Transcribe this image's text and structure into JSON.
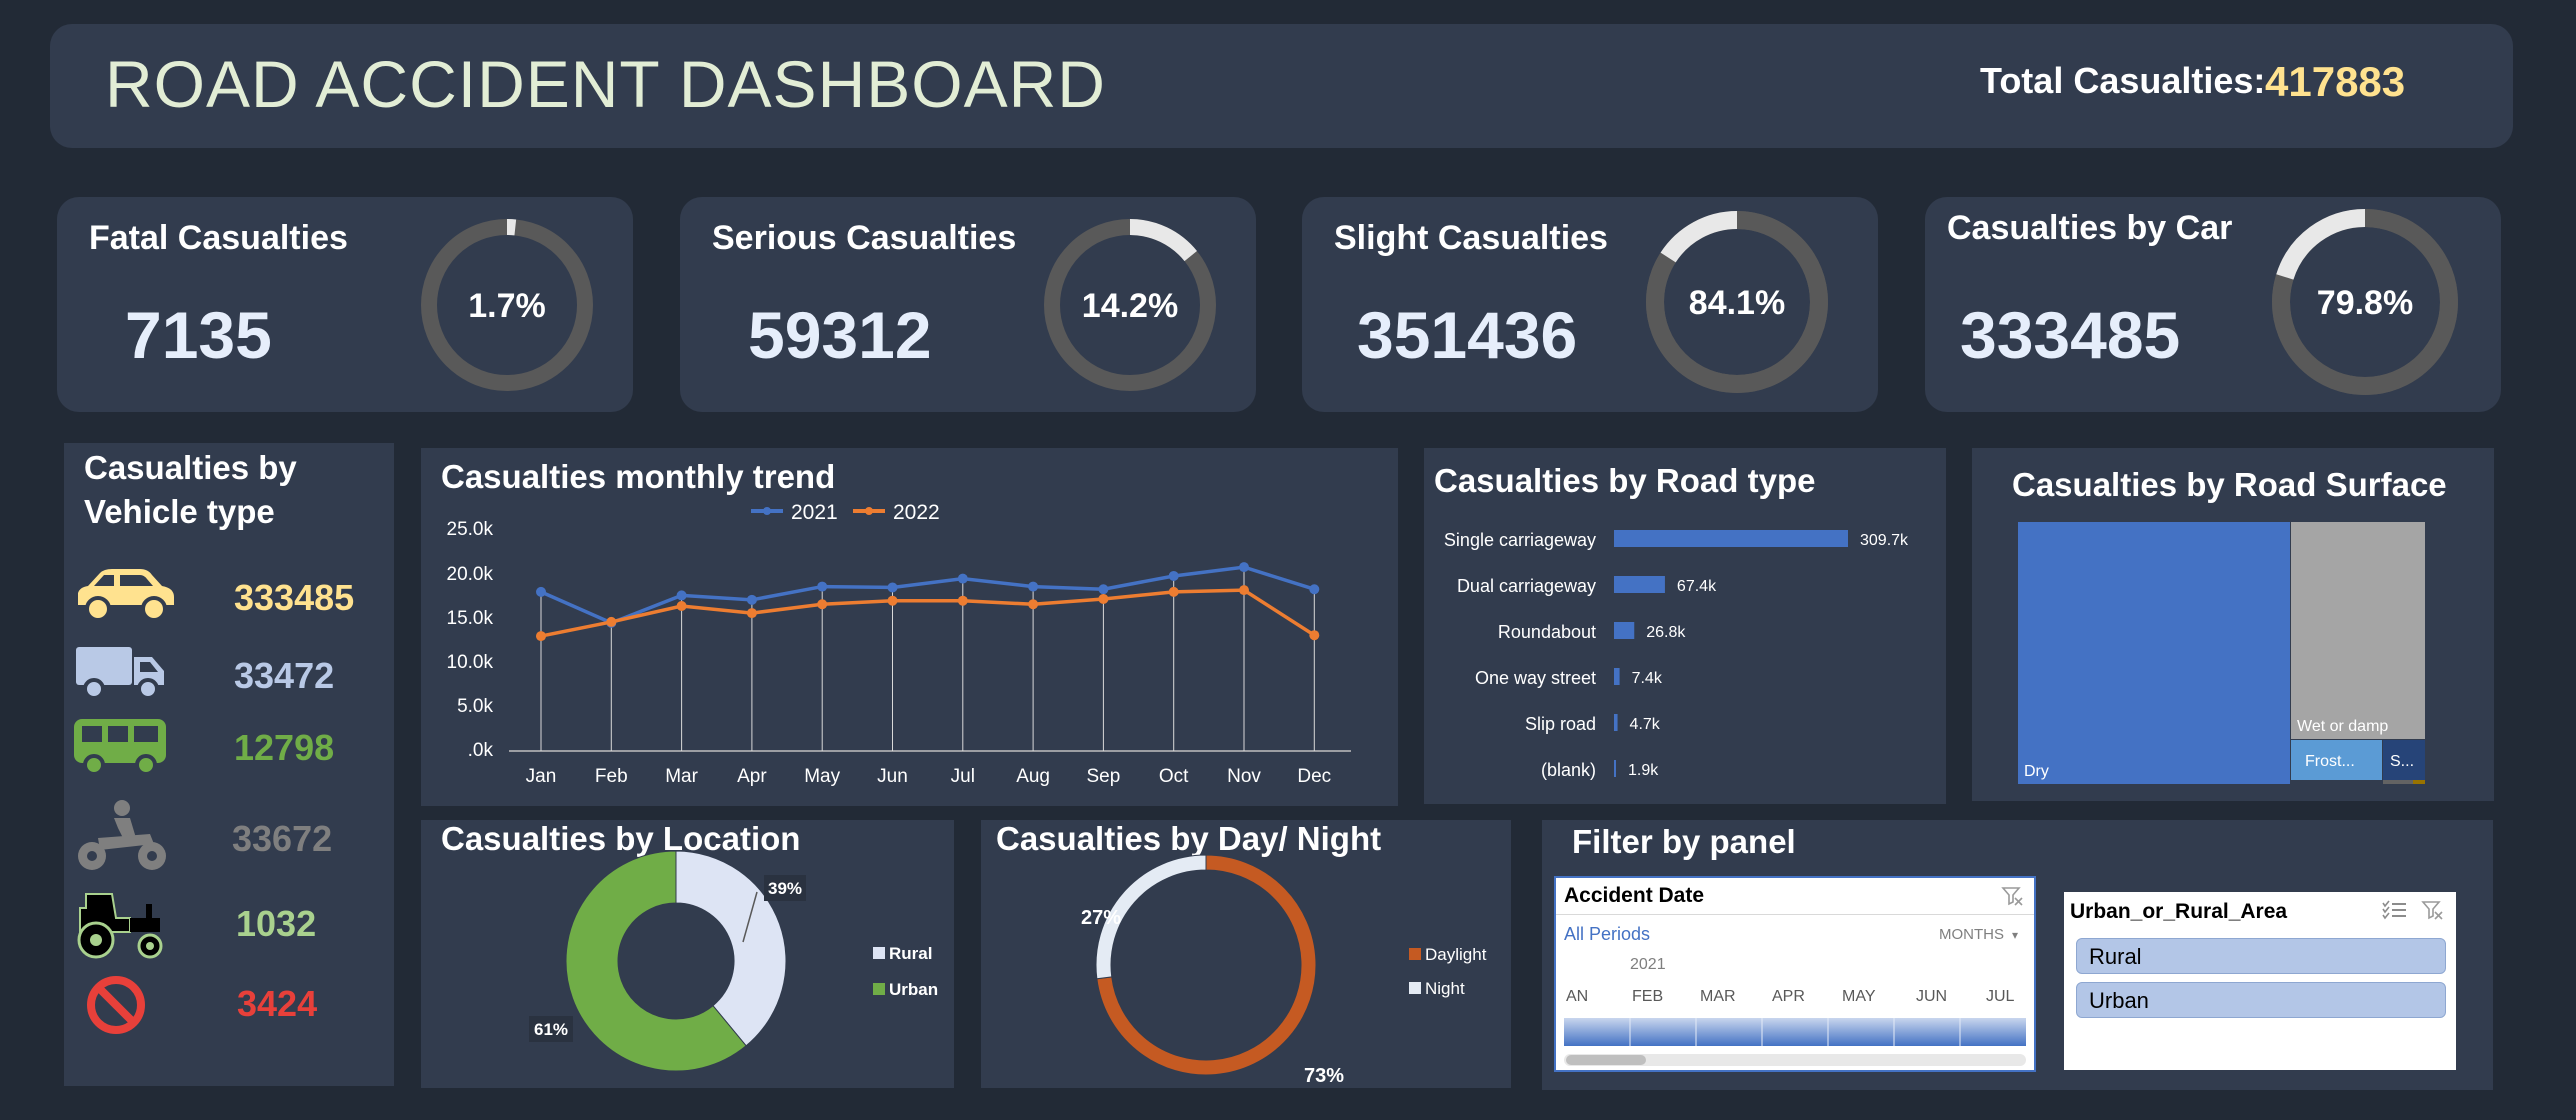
{
  "header": {
    "title": "ROAD ACCIDENT DASHBOARD",
    "total_label": "Total Casualties:",
    "total_value": "417883"
  },
  "kpis": [
    {
      "label": "Fatal Casualties",
      "value": "7135",
      "pct_label": "1.7%",
      "pct": 1.7
    },
    {
      "label": "Serious Casualties",
      "value": "59312",
      "pct_label": "14.2%",
      "pct": 14.2
    },
    {
      "label": "Slight Casualties",
      "value": "351436",
      "pct_label": "84.1%",
      "pct": 84.1
    },
    {
      "label": "Casualties by Car",
      "value": "333485",
      "pct_label": "79.8%",
      "pct": 79.8
    }
  ],
  "vehicle": {
    "title_line1": "Casualties by",
    "title_line2": "Vehicle type",
    "items": [
      {
        "icon": "car-icon",
        "value": "333485",
        "color": "#ffe28f"
      },
      {
        "icon": "van-icon",
        "value": "33472",
        "color": "#b9c9e6"
      },
      {
        "icon": "bus-icon",
        "value": "12798",
        "color": "#70ad47"
      },
      {
        "icon": "motorbike-icon",
        "value": "33672",
        "color": "#7f7f7f"
      },
      {
        "icon": "tractor-icon",
        "value": "1032",
        "color": "#a9d18e"
      },
      {
        "icon": "prohibited-icon",
        "value": "3424",
        "color": "#e8403a"
      }
    ]
  },
  "colors": {
    "series_2021": "#4472c4",
    "series_2022": "#ed7d31",
    "bar": "#4472c4",
    "urban": "#70ad47",
    "rural": "#dde4f4",
    "daylight": "#c55a22",
    "night": "#e4ebf4",
    "kpi_track": "#595959",
    "kpi_fill": "#e8e8e8"
  },
  "chart_data": [
    {
      "type": "line",
      "title": "Casualties monthly trend",
      "categories": [
        "Jan",
        "Feb",
        "Mar",
        "Apr",
        "May",
        "Jun",
        "Jul",
        "Aug",
        "Sep",
        "Oct",
        "Nov",
        "Dec"
      ],
      "series": [
        {
          "name": "2021",
          "values": [
            18.0,
            14.5,
            17.6,
            17.1,
            18.6,
            18.5,
            19.5,
            18.6,
            18.3,
            19.8,
            20.8,
            18.3
          ]
        },
        {
          "name": "2022",
          "values": [
            13.0,
            14.6,
            16.4,
            15.6,
            16.6,
            17.0,
            17.0,
            16.6,
            17.2,
            18.0,
            18.2,
            13.1
          ]
        }
      ],
      "yticks": [
        "25.0k",
        "20.0k",
        "15.0k",
        "10.0k",
        "5.0k",
        ".0k"
      ],
      "ylim": [
        0,
        25
      ],
      "legend": "top"
    },
    {
      "type": "bar",
      "title": "Casualties by Road type",
      "categories": [
        "Single carriageway",
        "Dual carriageway",
        "Roundabout",
        "One way street",
        "Slip road",
        "(blank)"
      ],
      "values": [
        309.7,
        67.4,
        26.8,
        7.4,
        4.7,
        1.9
      ],
      "labels": [
        "309.7k",
        "67.4k",
        "26.8k",
        "7.4k",
        "4.7k",
        "1.9k"
      ],
      "orientation": "horizontal"
    },
    {
      "type": "treemap",
      "title": "Casualties by Road Surface",
      "labels": [
        "Dry",
        "Wet or damp",
        "Frost...",
        "S..."
      ]
    },
    {
      "type": "pie",
      "title": "Casualties by Location",
      "categories": [
        "Rural",
        "Urban"
      ],
      "values": [
        39,
        61
      ],
      "labels": [
        "39%",
        "61%"
      ],
      "legend": "right"
    },
    {
      "type": "pie",
      "title": "Casualties by Day/ Night",
      "categories": [
        "Daylight",
        "Night"
      ],
      "values": [
        73,
        27
      ],
      "labels": [
        "73%",
        "27%"
      ],
      "legend": "right"
    }
  ],
  "filter": {
    "title": "Filter by panel",
    "date_slicer": {
      "title": "Accident Date",
      "all_periods": "All Periods",
      "level": "MONTHS",
      "year": "2021",
      "months": [
        "AN",
        "FEB",
        "MAR",
        "APR",
        "MAY",
        "JUN",
        "JUL"
      ]
    },
    "area_slicer": {
      "title": "Urban_or_Rural_Area",
      "items": [
        "Rural",
        "Urban"
      ]
    }
  }
}
